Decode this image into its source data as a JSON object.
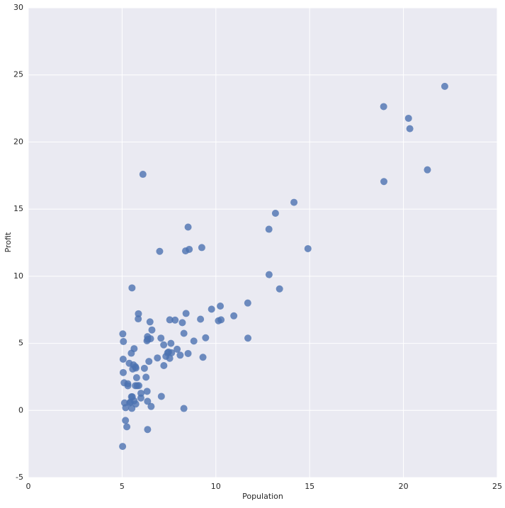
{
  "chart_data": {
    "type": "scatter",
    "xlabel": "Population",
    "ylabel": "Profit",
    "xlim": [
      0,
      25
    ],
    "ylim": [
      -5,
      30
    ],
    "xticks": [
      0,
      5,
      10,
      15,
      20,
      25
    ],
    "yticks": [
      -5,
      0,
      5,
      10,
      15,
      20,
      25,
      30
    ],
    "grid": true,
    "background": "#eaeaf2",
    "color": "#4c72b0",
    "x": [
      6.1101,
      5.5277,
      8.5186,
      7.0032,
      5.8598,
      8.3829,
      7.4764,
      8.5781,
      6.4862,
      5.0546,
      5.7107,
      14.164,
      5.734,
      8.4084,
      5.6407,
      5.3794,
      6.3654,
      5.1301,
      6.4296,
      7.0708,
      6.1891,
      20.27,
      5.4901,
      6.3261,
      5.5649,
      18.945,
      12.828,
      10.957,
      13.176,
      22.203,
      5.2524,
      6.5894,
      9.2482,
      5.8918,
      8.2111,
      7.9334,
      8.0959,
      5.6063,
      12.836,
      6.3534,
      5.4069,
      6.8825,
      11.708,
      5.7737,
      7.8247,
      7.0931,
      5.0702,
      5.8014,
      11.7,
      5.5416,
      7.5402,
      5.3077,
      7.4239,
      7.6031,
      6.3328,
      6.3589,
      6.2742,
      5.6397,
      9.3102,
      9.4536,
      8.8254,
      5.1793,
      21.279,
      14.908,
      18.959,
      7.2182,
      8.2951,
      10.236,
      5.4994,
      20.341,
      10.136,
      7.3345,
      6.0062,
      7.2259,
      5.0269,
      6.5479,
      7.5386,
      5.0365,
      10.274,
      5.1077,
      5.7292,
      5.1884,
      6.3557,
      9.7687,
      6.5159,
      8.5172,
      9.1802,
      6.002,
      5.5204,
      5.0594,
      5.7077,
      7.6366,
      5.8707,
      5.3054,
      8.2934,
      13.394,
      5.4369
    ],
    "y": [
      17.592,
      9.1302,
      13.662,
      11.854,
      6.8233,
      11.886,
      4.3483,
      12,
      6.5987,
      3.8166,
      3.2522,
      15.505,
      3.1551,
      7.2258,
      0.71618,
      3.5129,
      5.3048,
      0.56077,
      3.6518,
      5.3893,
      3.1386,
      21.767,
      4.263,
      5.1875,
      3.0825,
      22.638,
      13.501,
      7.0467,
      14.692,
      24.147,
      -1.22,
      5.9966,
      12.134,
      1.8495,
      6.5426,
      4.5623,
      4.1164,
      3.3928,
      10.117,
      5.4974,
      0.55657,
      3.9115,
      5.3854,
      2.4406,
      6.7318,
      1.0463,
      5.1337,
      1.844,
      8.0043,
      1.0179,
      6.7504,
      1.8396,
      4.2885,
      4.9981,
      1.4233,
      -1.4211,
      2.4756,
      4.6042,
      3.9624,
      5.4141,
      5.1694,
      -0.74279,
      17.929,
      12.054,
      17.054,
      4.8852,
      5.7442,
      7.7754,
      1.0173,
      20.992,
      6.6799,
      4.0259,
      1.2784,
      3.3411,
      -2.6807,
      0.29678,
      3.8845,
      5.7014,
      6.7526,
      2.0576,
      0.47953,
      0.20421,
      0.67861,
      7.5435,
      5.3436,
      4.2415,
      6.7981,
      0.92695,
      0.152,
      2.8214,
      1.8451,
      4.2959,
      7.2029,
      1.9869,
      0.14454,
      9.0551,
      0.61705
    ]
  }
}
